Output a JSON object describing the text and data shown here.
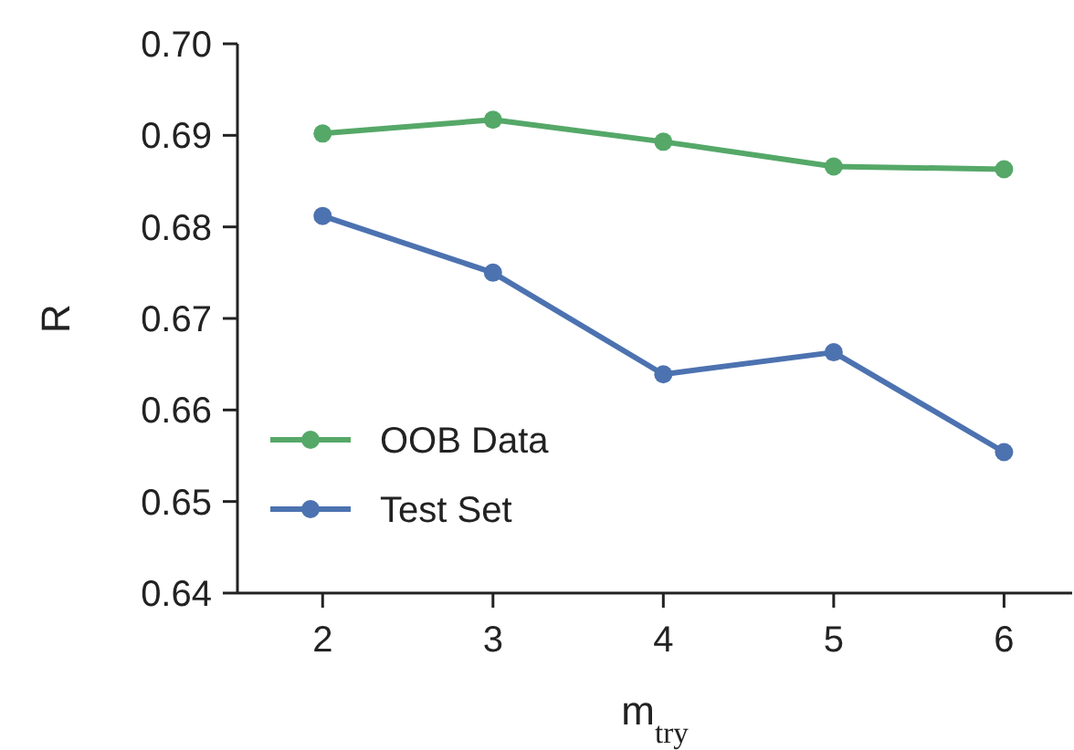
{
  "chart_data": {
    "type": "line",
    "xlabel": "m$_{try}$",
    "ylabel": "R",
    "x": [
      2,
      3,
      4,
      5,
      6
    ],
    "series": [
      {
        "name": "OOB Data",
        "color": "#55a868",
        "values": [
          0.6902,
          0.6917,
          0.6893,
          0.6866,
          0.6863
        ]
      },
      {
        "name": "Test Set",
        "color": "#4c72b0",
        "values": [
          0.6812,
          0.675,
          0.6639,
          0.6663,
          0.6554
        ]
      }
    ],
    "xlim": [
      1.5,
      6.4
    ],
    "xticks": [
      2,
      3,
      4,
      5,
      6
    ],
    "ylim": [
      0.64,
      0.7
    ],
    "yticks": [
      {
        "value": 0.64,
        "label": "0.64"
      },
      {
        "value": 0.65,
        "label": "0.65"
      },
      {
        "value": 0.66,
        "label": "0.66"
      },
      {
        "value": 0.67,
        "label": "0.67"
      },
      {
        "value": 0.68,
        "label": "0.68"
      },
      {
        "value": 0.69,
        "label": "0.69"
      },
      {
        "value": 0.7,
        "label": "0.70"
      }
    ],
    "grid": false,
    "legend": "bottom left",
    "marker": "circle",
    "line_style": "solid"
  }
}
